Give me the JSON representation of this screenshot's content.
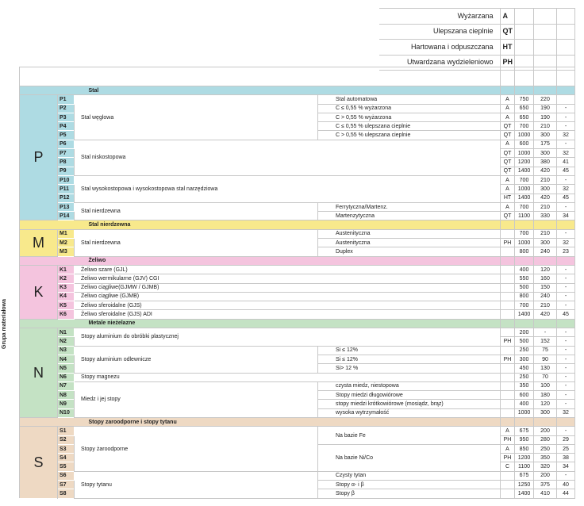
{
  "side_label": "Grupa materiałowa",
  "legend": [
    {
      "label": "Wyżarzana",
      "code": "A"
    },
    {
      "label": "Ulepszana cieplnie",
      "code": "QT"
    },
    {
      "label": "Hartowana i odpuszczana",
      "code": "HT"
    },
    {
      "label": "Utwardzana wydzieleniowo",
      "code": "PH"
    }
  ],
  "sections": [
    {
      "letter": "P",
      "title": "Stal",
      "color": "#aedbe3",
      "blocks": [
        {
          "name": "Stal węglowa",
          "subs": [
            {
              "label": "Stal automatowa",
              "rows": [
                [
                  "P1",
                  "A",
                  "750",
                  "220",
                  ""
                ]
              ]
            },
            {
              "label": "C ≤ 0,55 % wyżarzona",
              "rows": [
                [
                  "P2",
                  "A",
                  "650",
                  "190",
                  "-"
                ]
              ]
            },
            {
              "label": "C > 0,55 % wyżarzona",
              "rows": [
                [
                  "P3",
                  "A",
                  "650",
                  "190",
                  "-"
                ]
              ]
            },
            {
              "label": "C ≤ 0,55 % ulepszana cieplnie",
              "rows": [
                [
                  "P4",
                  "QT",
                  "700",
                  "210",
                  "-"
                ]
              ]
            },
            {
              "label": "C > 0,55 % ulepszana cieplnie",
              "rows": [
                [
                  "P5",
                  "QT",
                  "1000",
                  "300",
                  "32"
                ]
              ]
            }
          ]
        },
        {
          "name": "Stal niskostopowa",
          "wide": true,
          "subs": [
            {
              "label": "",
              "rows": [
                [
                  "P6",
                  "A",
                  "600",
                  "175",
                  "-"
                ],
                [
                  "P7",
                  "QT",
                  "1000",
                  "300",
                  "32"
                ],
                [
                  "P8",
                  "QT",
                  "1200",
                  "380",
                  "41"
                ],
                [
                  "P9",
                  "QT",
                  "1400",
                  "420",
                  "45"
                ]
              ]
            }
          ]
        },
        {
          "name": "Stal wysokostopowa i wysokostopowa stal narzędziowa",
          "wide": true,
          "subs": [
            {
              "label": "",
              "rows": [
                [
                  "P10",
                  "A",
                  "700",
                  "210",
                  "-"
                ],
                [
                  "P11",
                  "A",
                  "1000",
                  "300",
                  "32"
                ],
                [
                  "P12",
                  "HT",
                  "1400",
                  "420",
                  "45"
                ]
              ]
            }
          ]
        },
        {
          "name": "Stal nierdzewna",
          "subs": [
            {
              "label": "Ferrytyczna/Martenz.",
              "rows": [
                [
                  "P13",
                  "A",
                  "700",
                  "210",
                  "-"
                ]
              ]
            },
            {
              "label": "Martenzytyczna",
              "rows": [
                [
                  "P14",
                  "QT",
                  "1100",
                  "330",
                  "34"
                ]
              ]
            }
          ]
        }
      ]
    },
    {
      "letter": "M",
      "title": "Stal nierdzewna",
      "color": "#f8e98c",
      "blocks": [
        {
          "name": "Stal nierdzewna",
          "subs": [
            {
              "label": "Austenityczna",
              "rows": [
                [
                  "M1",
                  "",
                  "700",
                  "210",
                  "-"
                ]
              ]
            },
            {
              "label": "Austenityczna",
              "rows": [
                [
                  "M2",
                  "PH",
                  "1000",
                  "300",
                  "32"
                ]
              ]
            },
            {
              "label": "Duplex",
              "rows": [
                [
                  "M3",
                  "",
                  "800",
                  "240",
                  "23"
                ]
              ]
            }
          ]
        }
      ]
    },
    {
      "letter": "K",
      "title": "Żeliwo",
      "color": "#f4c4de",
      "blocks": [
        {
          "name": "Żeliwo szare (GJL)",
          "wide": true,
          "subs": [
            {
              "label": "",
              "rows": [
                [
                  "K1",
                  "",
                  "400",
                  "120",
                  "-"
                ]
              ]
            }
          ]
        },
        {
          "name": "Żeliwo wermikularne (GJV) CGI",
          "wide": true,
          "subs": [
            {
              "label": "",
              "rows": [
                [
                  "K2",
                  "",
                  "550",
                  "160",
                  "-"
                ]
              ]
            }
          ]
        },
        {
          "name": "Żeliwo ciągliwe(GJMW / GJMB)",
          "wide": true,
          "subs": [
            {
              "label": "",
              "rows": [
                [
                  "K3",
                  "",
                  "500",
                  "150",
                  "-"
                ]
              ]
            }
          ]
        },
        {
          "name": "Żeliwo ciągliwe (GJMB)",
          "wide": true,
          "subs": [
            {
              "label": "",
              "rows": [
                [
                  "K4",
                  "",
                  "800",
                  "240",
                  "-"
                ]
              ]
            }
          ]
        },
        {
          "name": "Żeliwo sferoidalne (GJS)",
          "wide": true,
          "subs": [
            {
              "label": "",
              "rows": [
                [
                  "K5",
                  "",
                  "700",
                  "210",
                  "-"
                ]
              ]
            }
          ]
        },
        {
          "name": "Żeliwo sferoidalne (GJS) ADI",
          "wide": true,
          "subs": [
            {
              "label": "",
              "rows": [
                [
                  "K6",
                  "",
                  "1400",
                  "420",
                  "45"
                ]
              ]
            }
          ]
        }
      ]
    },
    {
      "letter": "N",
      "title": "Metale nieżelazne",
      "color": "#c4e2c4",
      "blocks": [
        {
          "name": "Stopy aluminium do obróbki plastycznej",
          "wide": true,
          "subs": [
            {
              "label": "",
              "rows": [
                [
                  "N1",
                  "",
                  "200",
                  "-",
                  "-"
                ],
                [
                  "N2",
                  "PH",
                  "500",
                  "152",
                  "-"
                ]
              ]
            }
          ]
        },
        {
          "name": "Stopy aluminium odlewnicze",
          "subs": [
            {
              "label": "Si ≤ 12%",
              "rows": [
                [
                  "N3",
                  "",
                  "250",
                  "75",
                  "-"
                ]
              ]
            },
            {
              "label": "Si ≤ 12%",
              "rows": [
                [
                  "N4",
                  "PH",
                  "300",
                  "90",
                  "-"
                ]
              ]
            },
            {
              "label": "Si> 12 %",
              "rows": [
                [
                  "N5",
                  "",
                  "450",
                  "130",
                  "-"
                ]
              ]
            }
          ]
        },
        {
          "name": "Stopy magnezu",
          "wide": true,
          "subs": [
            {
              "label": "",
              "rows": [
                [
                  "N6",
                  "",
                  "250",
                  "70",
                  "-"
                ]
              ]
            }
          ]
        },
        {
          "name": "Miedz i jej stopy",
          "subs": [
            {
              "label": "czysta miedz, niestopowa",
              "rows": [
                [
                  "N7",
                  "",
                  "350",
                  "100",
                  "-"
                ]
              ]
            },
            {
              "label": "Stopy miedzi długowiórowe",
              "rows": [
                [
                  "N8",
                  "",
                  "600",
                  "180",
                  "-"
                ]
              ]
            },
            {
              "label": "stopy miedzi krótkowiórowe (mosiądz, brąz)",
              "rows": [
                [
                  "N9",
                  "",
                  "400",
                  "120",
                  "-"
                ]
              ]
            },
            {
              "label": "wysoka wytrzymałość",
              "rows": [
                [
                  "N10",
                  "",
                  "1000",
                  "300",
                  "32"
                ]
              ]
            }
          ]
        }
      ]
    },
    {
      "letter": "S",
      "title": "Stopy zaroodporne i stopy tytanu",
      "color": "#eed9c3",
      "blocks": [
        {
          "name": "Stopy żaroodporne",
          "subs": [
            {
              "label": "Na bazie Fe",
              "rows": [
                [
                  "S1",
                  "A",
                  "675",
                  "200",
                  "-"
                ],
                [
                  "S2",
                  "PH",
                  "950",
                  "280",
                  "29"
                ]
              ]
            },
            {
              "label": "Na bazie Ni/Co",
              "rows": [
                [
                  "S3",
                  "A",
                  "850",
                  "250",
                  "25"
                ],
                [
                  "S4",
                  "PH",
                  "1200",
                  "350",
                  "38"
                ],
                [
                  "S5",
                  "C",
                  "1100",
                  "320",
                  "34"
                ]
              ]
            }
          ]
        },
        {
          "name": "Stopy tytanu",
          "subs": [
            {
              "label": "Czysty tytan",
              "rows": [
                [
                  "S6",
                  "",
                  "675",
                  "200",
                  "-"
                ]
              ]
            },
            {
              "label": "Stopy  α- i β",
              "rows": [
                [
                  "S7",
                  "",
                  "1250",
                  "375",
                  "40"
                ]
              ]
            },
            {
              "label": "Stopy β",
              "rows": [
                [
                  "S8",
                  "",
                  "1400",
                  "410",
                  "44"
                ]
              ]
            }
          ]
        }
      ]
    }
  ]
}
